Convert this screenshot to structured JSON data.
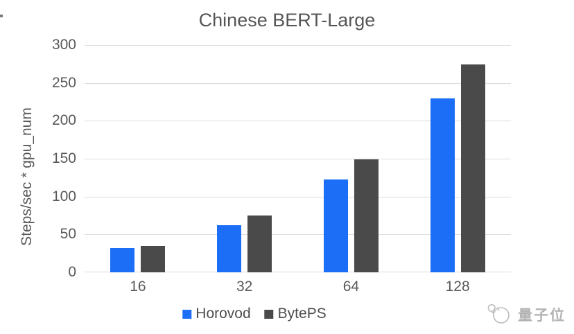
{
  "chart_data": {
    "type": "bar",
    "title": "Chinese BERT-Large",
    "categories": [
      "16",
      "32",
      "64",
      "128"
    ],
    "series": [
      {
        "name": "Horovod",
        "color": "#1b6ef5",
        "values": [
          32,
          62,
          123,
          230
        ]
      },
      {
        "name": "BytePS",
        "color": "#4a4a4a",
        "values": [
          35,
          75,
          149,
          274
        ]
      }
    ],
    "xlabel": "",
    "ylabel": "Steps/sec * gpu_num",
    "ylim": [
      0,
      300
    ],
    "yticks": [
      0,
      50,
      100,
      150,
      200,
      250,
      300
    ],
    "grid": true,
    "legend_position": "bottom",
    "text_color": "#595959",
    "gridline_color": "#dcdcdc",
    "background_color": "#ffffff"
  },
  "watermark": {
    "text": "量子位",
    "icon": "qbitai-logo-icon",
    "color": "#b3b3b3"
  }
}
